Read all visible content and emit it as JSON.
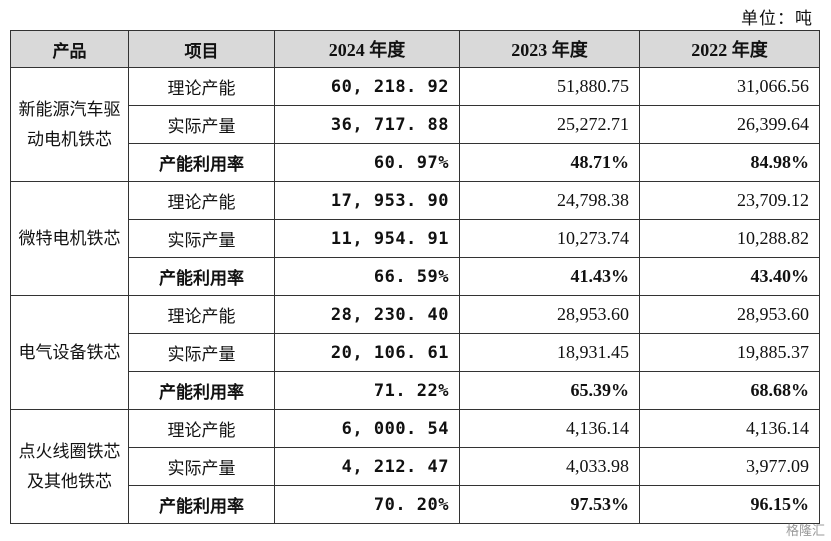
{
  "unit_label": "单位：吨",
  "headers": [
    "产品",
    "项目",
    "2024 年度",
    "2023 年度",
    "2022 年度"
  ],
  "groups": [
    {
      "product": "新能源汽车驱动电机铁芯",
      "rows": [
        {
          "item": "理论产能",
          "y2024": "60, 218. 92",
          "y2023": "51,880.75",
          "y2022": "31,066.56"
        },
        {
          "item": "实际产量",
          "y2024": "36, 717. 88",
          "y2023": "25,272.71",
          "y2022": "26,399.64"
        },
        {
          "item": "产能利用率",
          "y2024": "60. 97%",
          "y2023": "48.71%",
          "y2022": "84.98%"
        }
      ]
    },
    {
      "product": "微特电机铁芯",
      "rows": [
        {
          "item": "理论产能",
          "y2024": "17, 953. 90",
          "y2023": "24,798.38",
          "y2022": "23,709.12"
        },
        {
          "item": "实际产量",
          "y2024": "11, 954. 91",
          "y2023": "10,273.74",
          "y2022": "10,288.82"
        },
        {
          "item": "产能利用率",
          "y2024": "66. 59%",
          "y2023": "41.43%",
          "y2022": "43.40%"
        }
      ]
    },
    {
      "product": "电气设备铁芯",
      "rows": [
        {
          "item": "理论产能",
          "y2024": "28, 230. 40",
          "y2023": "28,953.60",
          "y2022": "28,953.60"
        },
        {
          "item": "实际产量",
          "y2024": "20, 106. 61",
          "y2023": "18,931.45",
          "y2022": "19,885.37"
        },
        {
          "item": "产能利用率",
          "y2024": "71. 22%",
          "y2023": "65.39%",
          "y2022": "68.68%"
        }
      ]
    },
    {
      "product": "点火线圈铁芯及其他铁芯",
      "rows": [
        {
          "item": "理论产能",
          "y2024": "6, 000. 54",
          "y2023": "4,136.14",
          "y2022": "4,136.14"
        },
        {
          "item": "实际产量",
          "y2024": "4, 212. 47",
          "y2023": "4,033.98",
          "y2022": "3,977.09"
        },
        {
          "item": "产能利用率",
          "y2024": "70. 20%",
          "y2023": "97.53%",
          "y2022": "96.15%"
        }
      ]
    }
  ],
  "watermark": "格隆汇"
}
